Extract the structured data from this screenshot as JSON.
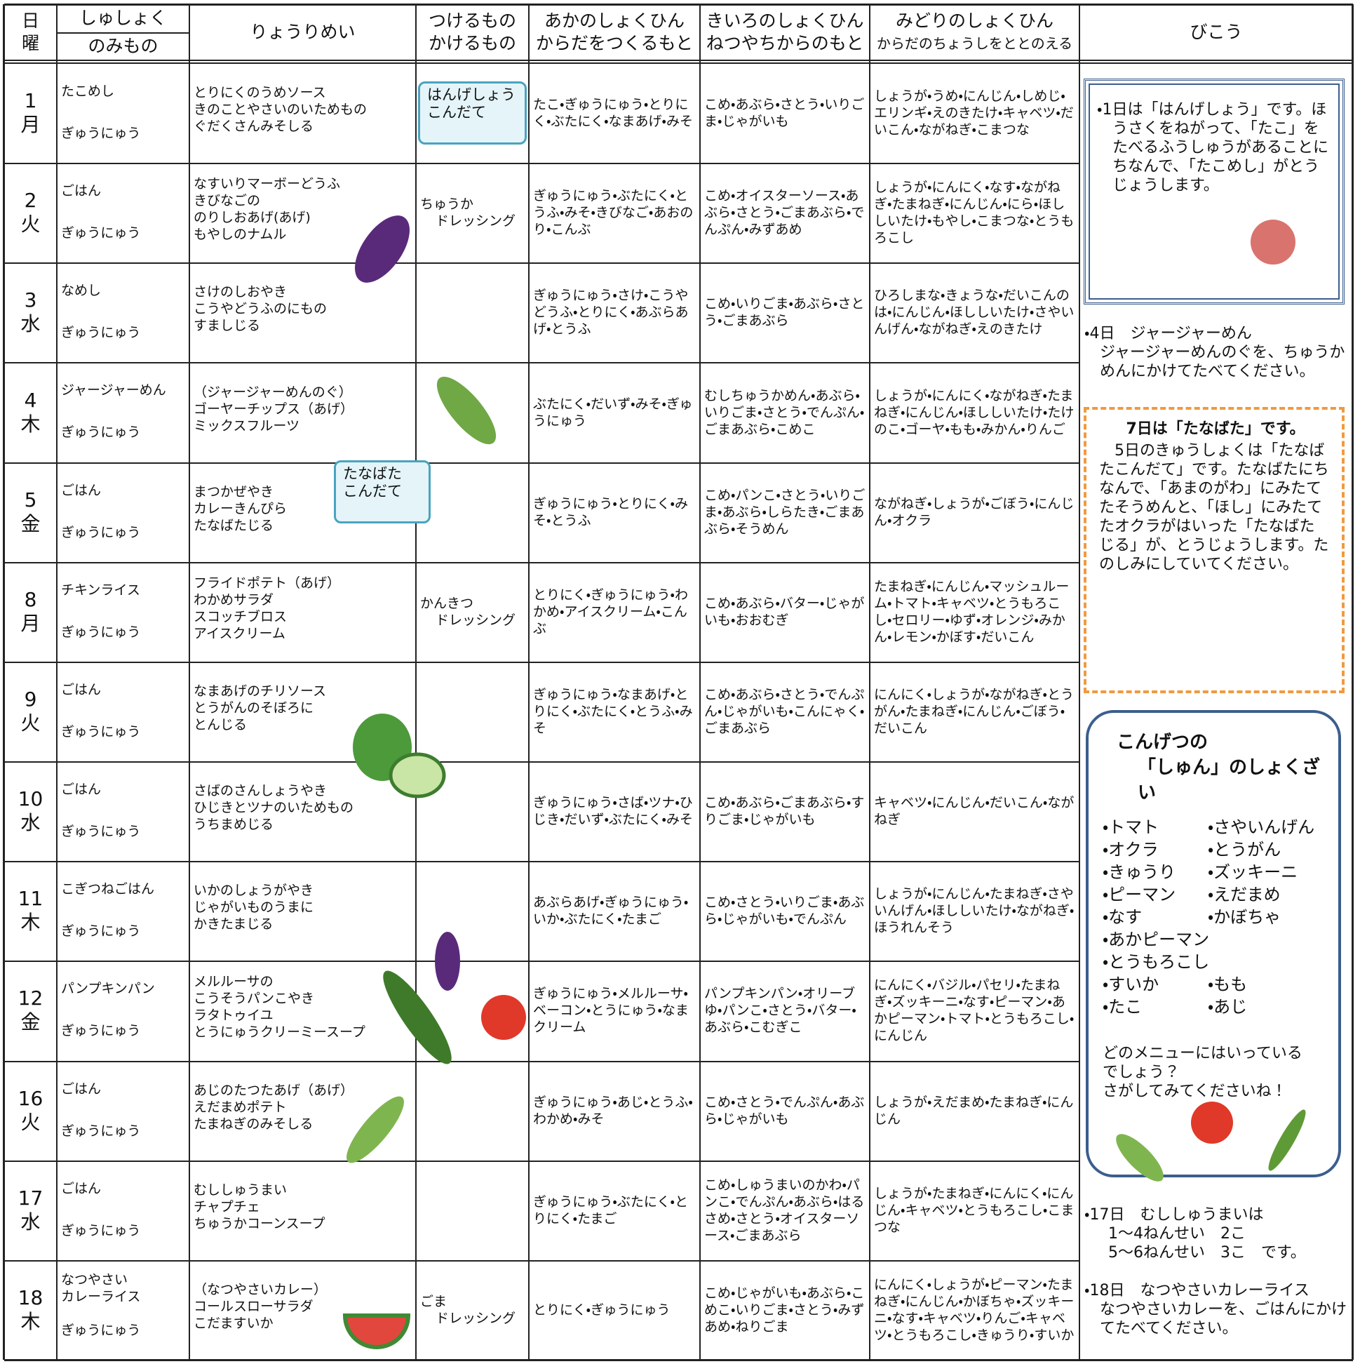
{
  "header": {
    "day": "日",
    "weekday": "曜",
    "staple": "しゅしょく",
    "drink": "のみもの",
    "dish": "りょうりめい",
    "condiment_1": "つけるもの",
    "condiment_2": "かけるもの",
    "red_1": "あかのしょくひん",
    "red_2": "からだをつくるもと",
    "yellow_1": "きいろのしょくひん",
    "yellow_2": "ねつやちからのもと",
    "green_1": "みどりのしょくひん",
    "green_2": "からだのちょうしをととのえる",
    "notes": "びこう"
  },
  "rows": [
    {
      "day": "1",
      "weekday": "月",
      "staple": [
        "たこめし"
      ],
      "drink": "ぎゅうにゅう",
      "dishes": [
        "とりにくのうめソース",
        "きのことやさいのいためもの",
        "ぐだくさんみそしる"
      ],
      "condiment": [],
      "condiment_label": [
        "はんげしょう",
        "こんだて"
      ],
      "red": "たこ・ぎゅうにゅう・とりにく・ぶたにく・なまあげ・みそ",
      "yellow": "こめ・あぶら・さとう・いりごま・じゃがいも",
      "green": "しょうが・うめ・にんじん・しめじ・エリンギ・えのきたけ・キャベツ・だいこん・ながねぎ・こまつな"
    },
    {
      "day": "2",
      "weekday": "火",
      "staple": [
        "ごはん"
      ],
      "drink": "ぎゅうにゅう",
      "dishes": [
        "なすいりマーボーどうふ",
        "きびなごの",
        "のりしおあげ(あげ)",
        "もやしのナムル"
      ],
      "condiment": [
        "ちゅうか",
        "ドレッシング"
      ],
      "red": "ぎゅうにゅう・ぶたにく・とうふ・みそ・きびなご・あおのり・こんぶ",
      "yellow": "こめ・オイスターソース・あぶら・さとう・ごまあぶら・でんぷん・みずあめ",
      "green": "しょうが・にんにく・なす・ながねぎ・たまねぎ・にんじん・にら・ほししいたけ・もやし・こまつな・とうもろこし"
    },
    {
      "day": "3",
      "weekday": "水",
      "staple": [
        "なめし"
      ],
      "drink": "ぎゅうにゅう",
      "dishes": [
        "さけのしおやき",
        "こうやどうふのにもの",
        "すましじる"
      ],
      "condiment": [],
      "red": "ぎゅうにゅう・さけ・こうやどうふ・とりにく・あぶらあげ・とうふ",
      "yellow": "こめ・いりごま・あぶら・さとう・ごまあぶら",
      "green": "ひろしまな・きょうな・だいこんのは・にんじん・ほししいたけ・さやいんげん・ながねぎ・えのきたけ"
    },
    {
      "day": "4",
      "weekday": "木",
      "staple": [
        "ジャージャーめん"
      ],
      "drink": "ぎゅうにゅう",
      "dishes": [
        "（ジャージャーめんのぐ）",
        "ゴーヤーチップス（あげ）",
        "ミックスフルーツ"
      ],
      "condiment": [],
      "red": "ぶたにく・だいず・みそ・ぎゅうにゅう",
      "yellow": "むしちゅうかめん・あぶら・いりごま・さとう・でんぷん・ごまあぶら・こめこ",
      "green": "しょうが・にんにく・ながねぎ・たまねぎ・にんじん・ほししいたけ・たけのこ・ゴーヤ・もも・みかん・りんご"
    },
    {
      "day": "5",
      "weekday": "金",
      "staple": [
        "ごはん"
      ],
      "drink": "ぎゅうにゅう",
      "dishes": [
        "まつかぜやき",
        "カレーきんぴら",
        "たなばたじる"
      ],
      "dish_label": [
        "たなばた",
        "こんだて"
      ],
      "condiment": [],
      "red": "ぎゅうにゅう・とりにく・みそ・とうふ",
      "yellow": "こめ・パンこ・さとう・いりごま・あぶら・しらたき・ごまあぶら・そうめん",
      "green": "ながねぎ・しょうが・ごぼう・にんじん・オクラ"
    },
    {
      "day": "8",
      "weekday": "月",
      "staple": [
        "チキンライス"
      ],
      "drink": "ぎゅうにゅう",
      "dishes": [
        "フライドポテト（あげ）",
        "わかめサラダ",
        "スコッチブロス",
        "アイスクリーム"
      ],
      "condiment": [
        "かんきつ",
        "ドレッシング"
      ],
      "red": "とりにく・ぎゅうにゅう・わかめ・アイスクリーム・こんぶ",
      "yellow": "こめ・あぶら・バター・じゃがいも・おおむぎ",
      "green": "たまねぎ・にんじん・マッシュルーム・トマト・キャベツ・とうもろこし・セロリー・ゆず・オレンジ・みかん・レモン・かぼす・だいこん"
    },
    {
      "day": "9",
      "weekday": "火",
      "staple": [
        "ごはん"
      ],
      "drink": "ぎゅうにゅう",
      "dishes": [
        "なまあげのチリソース",
        "とうがんのそぼろに",
        "とんじる"
      ],
      "condiment": [],
      "red": "ぎゅうにゅう・なまあげ・とりにく・ぶたにく・とうふ・みそ",
      "yellow": "こめ・あぶら・さとう・でんぷん・じゃがいも・こんにゃく・ごまあぶら",
      "green": "にんにく・しょうが・ながねぎ・とうがん・たまねぎ・にんじん・ごぼう・だいこん"
    },
    {
      "day": "10",
      "weekday": "水",
      "staple": [
        "ごはん"
      ],
      "drink": "ぎゅうにゅう",
      "dishes": [
        "さばのさんしょうやき",
        "ひじきとツナのいためもの",
        "うちまめじる"
      ],
      "condiment": [],
      "red": "ぎゅうにゅう・さば・ツナ・ひじき・だいず・ぶたにく・みそ",
      "yellow": "こめ・あぶら・ごまあぶら・すりごま・じゃがいも",
      "green": "キャベツ・にんじん・だいこん・ながねぎ"
    },
    {
      "day": "11",
      "weekday": "木",
      "staple": [
        "こぎつねごはん"
      ],
      "drink": "ぎゅうにゅう",
      "dishes": [
        "いかのしょうがやき",
        "じゃがいものうまに",
        "かきたまじる"
      ],
      "condiment": [],
      "red": "あぶらあげ・ぎゅうにゅう・いか・ぶたにく・たまご",
      "yellow": "こめ・さとう・いりごま・あぶら・じゃがいも・でんぷん",
      "green": "しょうが・にんじん・たまねぎ・さやいんげん・ほししいたけ・ながねぎ・ほうれんそう"
    },
    {
      "day": "12",
      "weekday": "金",
      "staple": [
        "パンプキンパン"
      ],
      "drink": "ぎゅうにゅう",
      "dishes": [
        "メルルーサの",
        "こうそうパンこやき",
        "ラタトゥイユ",
        "とうにゅうクリーミースープ"
      ],
      "condiment": [],
      "red": "ぎゅうにゅう・メルルーサ・ベーコン・とうにゅう・なまクリーム",
      "yellow": "パンプキンパン・オリーブゆ・パンこ・さとう・バター・あぶら・こむぎこ",
      "green": "にんにく・バジル・パセリ・たまねぎ・ズッキーニ・なす・ピーマン・あかピーマン・トマト・とうもろこし・にんじん"
    },
    {
      "day": "16",
      "weekday": "火",
      "staple": [
        "ごはん"
      ],
      "drink": "ぎゅうにゅう",
      "dishes": [
        "あじのたつたあげ（あげ）",
        "えだまめポテト",
        "たまねぎのみそしる"
      ],
      "condiment": [],
      "red": "ぎゅうにゅう・あじ・とうふ・わかめ・みそ",
      "yellow": "こめ・さとう・でんぷん・あぶら・じゃがいも",
      "green": "しょうが・えだまめ・たまねぎ・にんじん"
    },
    {
      "day": "17",
      "weekday": "水",
      "staple": [
        "ごはん"
      ],
      "drink": "ぎゅうにゅう",
      "dishes": [
        "むししゅうまい",
        "チャプチェ",
        "ちゅうかコーンスープ"
      ],
      "condiment": [],
      "red": "ぎゅうにゅう・ぶたにく・とりにく・たまご",
      "yellow": "こめ・しゅうまいのかわ・パンこ・でんぷん・あぶら・はるさめ・さとう・オイスターソース・ごまあぶら",
      "green": "しょうが・たまねぎ・にんにく・にんじん・キャベツ・とうもろこし・こまつな"
    },
    {
      "day": "18",
      "weekday": "木",
      "staple": [
        "なつやさい",
        "カレーライス"
      ],
      "drink": "ぎゅうにゅう",
      "dishes": [
        "（なつやさいカレー）",
        "コールスローサラダ",
        "こだますいか"
      ],
      "condiment": [
        "ごま",
        "ドレッシング"
      ],
      "red": "とりにく・ぎゅうにゅう",
      "yellow": "こめ・じゃがいも・あぶら・こめこ・いりごま・さとう・みずあめ・ねりごま",
      "green": "にんにく・しょうが・ピーマン・たまねぎ・にんじん・かぼちゃ・ズッキーニ・なす・キャベツ・りんご・キャベツ・とうもろこし・きゅうり・すいか"
    }
  ],
  "notes": {
    "hangesho": "・1日は「はんげしょう」です。ほうさくをねがって、「たこ」をたべるふうしゅうがあることにちなんで、「たこめし」がとうじょうします。",
    "day4": [
      "・4日　ジャージャーめん",
      "ジャージャーめんのぐを、ちゅうかめんにかけてたべてください。"
    ],
    "tanabata": {
      "title": "7日は「たなばた」です。",
      "body": "5日のきゅうしょくは「たなばたこんだて」です。たなばたにちなんで、「あまのがわ」にみたてたそうめんと、「ほし」にみたてたオクラがはいった「たなばたじる」が、とうじょうします。たのしみにしていてください。"
    },
    "season": {
      "title": [
        "こんげつの",
        "「しゅん」のしょくざい"
      ],
      "items": [
        [
          "・トマト",
          "・さやいんげん"
        ],
        [
          "・オクラ",
          "・とうがん"
        ],
        [
          "・きゅうり",
          "・ズッキーニ"
        ],
        [
          "・ピーマン",
          "・えだまめ"
        ],
        [
          "・なす",
          "・かぼちゃ"
        ],
        [
          "・あかピーマン"
        ],
        [
          "・とうもろこし"
        ],
        [
          "・すいか",
          "・もも"
        ],
        [
          "・たこ",
          "・あじ"
        ]
      ],
      "closing": [
        "どのメニューにはいっている",
        "でしょう？",
        "さがしてみてくださいね！"
      ]
    },
    "day17": [
      "・17日　むししゅうまいは",
      "1～4ねんせい　2こ",
      "5～6ねんせい　3こ　です。"
    ],
    "day18": [
      "・18日　なつやさいカレーライス",
      "なつやさいカレーを、ごはんにかけてたべてください。"
    ]
  }
}
